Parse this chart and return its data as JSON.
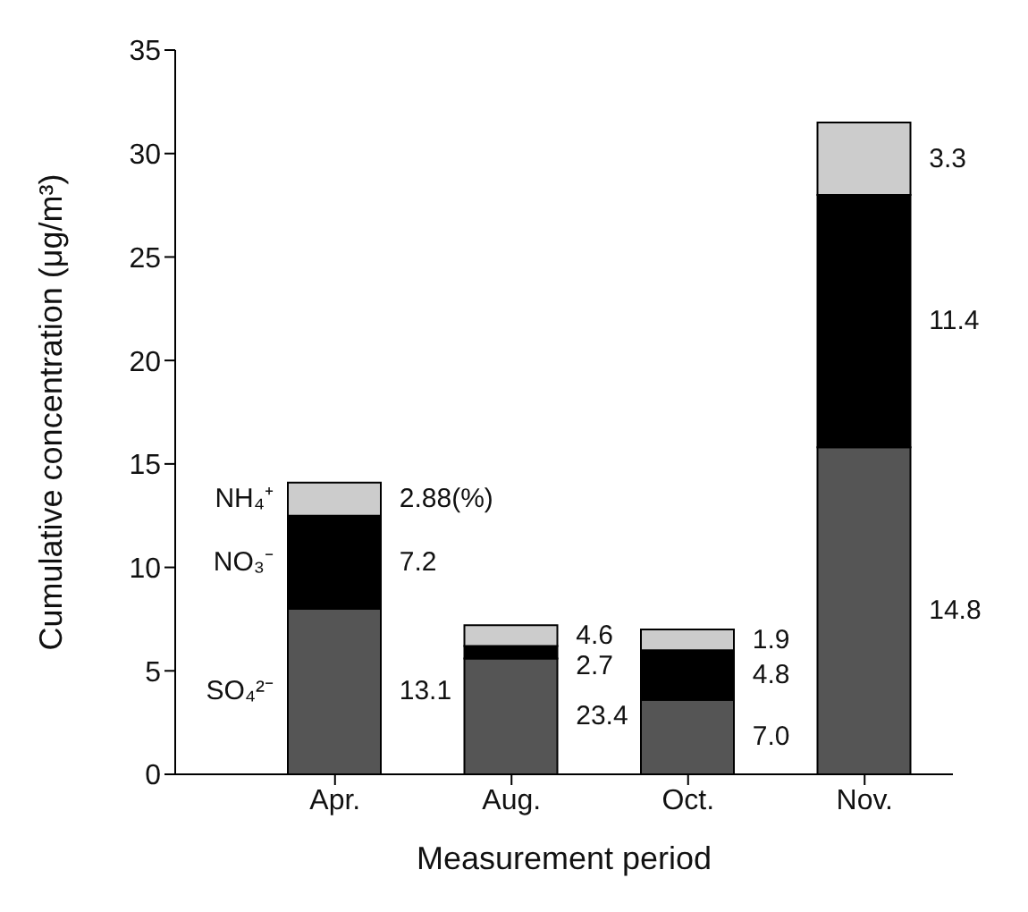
{
  "chart_data": {
    "type": "bar",
    "stacked": true,
    "xlabel": "Measurement period",
    "ylabel": "Cumulative concentration (μg/m³)",
    "categories": [
      "Apr.",
      "Aug.",
      "Oct.",
      "Nov."
    ],
    "ylim": [
      0,
      35
    ],
    "yticks": [
      0,
      5,
      10,
      15,
      20,
      25,
      30,
      35
    ],
    "grid": false,
    "legend": false,
    "series": [
      {
        "name": "SO₄²⁻",
        "color": "#555555",
        "values": [
          8.0,
          5.6,
          3.6,
          15.8
        ]
      },
      {
        "name": "NO₃⁻",
        "color": "#000000",
        "values": [
          4.5,
          0.6,
          2.4,
          12.2
        ]
      },
      {
        "name": "NH₄⁺",
        "color": "#cccccc",
        "values": [
          1.6,
          1.0,
          1.0,
          3.5
        ]
      }
    ],
    "annotations": [
      "2.88(%)",
      "7.2",
      "13.1",
      "4.6",
      "2.7",
      "23.4",
      "1.9",
      "4.8",
      "7.0",
      "3.3",
      "11.4",
      "14.8"
    ]
  }
}
